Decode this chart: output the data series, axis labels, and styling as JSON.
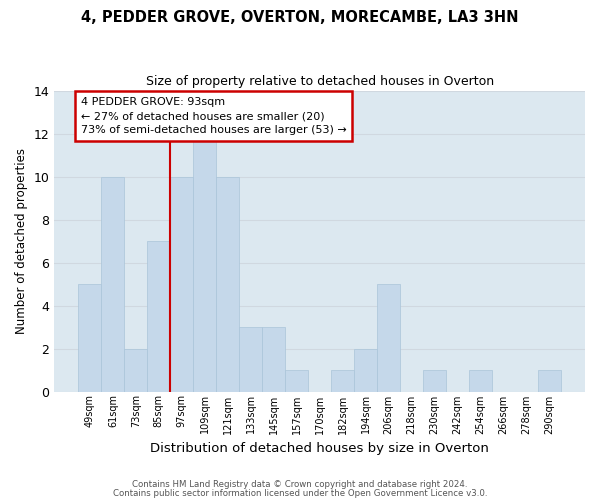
{
  "title": "4, PEDDER GROVE, OVERTON, MORECAMBE, LA3 3HN",
  "subtitle": "Size of property relative to detached houses in Overton",
  "xlabel": "Distribution of detached houses by size in Overton",
  "ylabel": "Number of detached properties",
  "categories": [
    "49sqm",
    "61sqm",
    "73sqm",
    "85sqm",
    "97sqm",
    "109sqm",
    "121sqm",
    "133sqm",
    "145sqm",
    "157sqm",
    "170sqm",
    "182sqm",
    "194sqm",
    "206sqm",
    "218sqm",
    "230sqm",
    "242sqm",
    "254sqm",
    "266sqm",
    "278sqm",
    "290sqm"
  ],
  "values": [
    5,
    10,
    2,
    7,
    10,
    12,
    10,
    3,
    3,
    1,
    0,
    1,
    2,
    5,
    0,
    1,
    0,
    1,
    0,
    0,
    1
  ],
  "bar_color": "#c5d8ea",
  "bar_edgecolor": "#aac4d9",
  "highlight_line_color": "#cc0000",
  "highlight_line_index": 4,
  "ylim": [
    0,
    14
  ],
  "yticks": [
    0,
    2,
    4,
    6,
    8,
    10,
    12,
    14
  ],
  "annotation_line1": "4 PEDDER GROVE: 93sqm",
  "annotation_line2": "← 27% of detached houses are smaller (20)",
  "annotation_line3": "73% of semi-detached houses are larger (53) →",
  "annotation_box_color": "#cc0000",
  "footer_line1": "Contains HM Land Registry data © Crown copyright and database right 2024.",
  "footer_line2": "Contains public sector information licensed under the Open Government Licence v3.0.",
  "grid_color": "#d0d8e0",
  "bg_color": "#dce8f0",
  "fig_bg": "#ffffff"
}
